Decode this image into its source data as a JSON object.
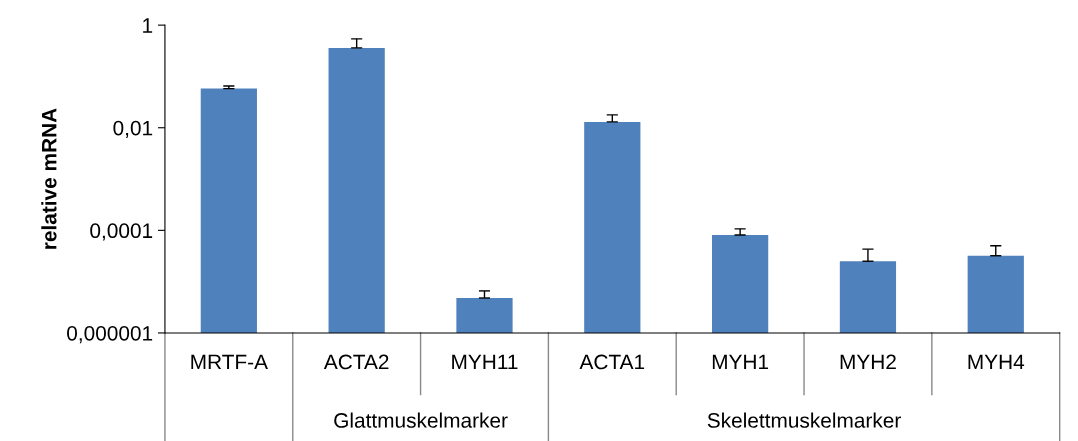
{
  "chart_data": {
    "type": "bar",
    "ylabel": "relative mRNA",
    "log": "y",
    "categories": [
      "MRTF-A",
      "ACTA2",
      "MYH11",
      "ACTA1",
      "MYH1",
      "MYH2",
      "MYH4"
    ],
    "series": [
      {
        "color": "#4f81bd",
        "values": [
          0.058,
          0.36,
          4.8e-06,
          0.013,
          8.1e-05,
          2.5e-05,
          3.2e-05
        ],
        "errors": [
          [
            0.058,
            0.065
          ],
          [
            0.36,
            0.54
          ],
          [
            4.8e-06,
            6.6e-06
          ],
          [
            0.013,
            0.0178
          ],
          [
            8.1e-05,
            0.000107
          ],
          [
            2.5e-05,
            4.3e-05
          ],
          [
            3.2e-05,
            5e-05
          ]
        ]
      }
    ],
    "ylim": [
      1e-06,
      1
    ],
    "yticks": [
      {
        "value": 1e-06,
        "label": "0,000001"
      },
      {
        "value": 0.0001,
        "label": "0,0001"
      },
      {
        "value": 0.01,
        "label": "0,01"
      },
      1
    ],
    "annotations": [
      "Glattmuskelmarker",
      "Skelettmuskelmarker"
    ],
    "grid": false,
    "legend": false
  }
}
